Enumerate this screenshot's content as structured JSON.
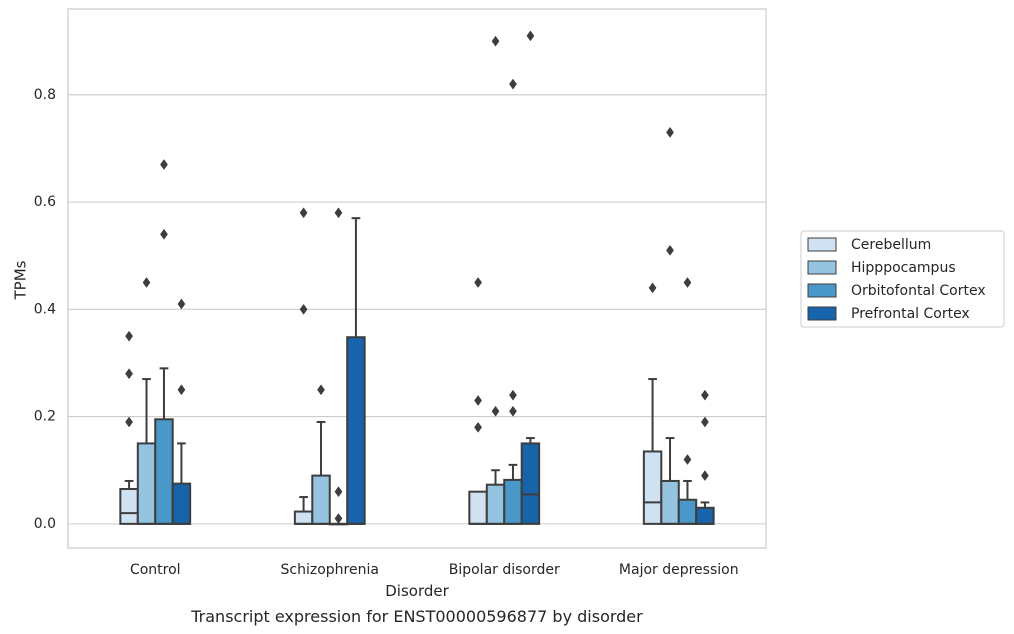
{
  "chart_data": {
    "type": "box",
    "xlabel": "Disorder",
    "ylabel": "TPMs",
    "caption": "Transcript expression for ENST00000596877 by disorder",
    "ylim": [
      -0.045,
      0.96
    ],
    "yticks": [
      0.0,
      0.2,
      0.4,
      0.6,
      0.8
    ],
    "ytick_labels": [
      "0.0",
      "0.2",
      "0.4",
      "0.6",
      "0.8"
    ],
    "grid": "horizontal",
    "legend_position": "right",
    "categories": [
      "Control",
      "Schizophrenia",
      "Bipolar disorder",
      "Major depression"
    ],
    "series": [
      {
        "name": "Cerebellum",
        "color": "#d0e1f2",
        "boxes": [
          {
            "q1": 0.0,
            "median": 0.02,
            "q3": 0.065,
            "whisker_low": 0.0,
            "whisker_high": 0.08,
            "outliers": [
              0.19,
              0.28,
              0.35
            ]
          },
          {
            "q1": 0.0,
            "median": 0.0,
            "q3": 0.023,
            "whisker_low": 0.0,
            "whisker_high": 0.05,
            "outliers": [
              0.4,
              0.58
            ]
          },
          {
            "q1": 0.0,
            "median": 0.0,
            "q3": 0.06,
            "whisker_low": 0.0,
            "whisker_high": 0.06,
            "outliers": [
              0.18,
              0.23,
              0.45
            ]
          },
          {
            "q1": 0.0,
            "median": 0.04,
            "q3": 0.135,
            "whisker_low": 0.0,
            "whisker_high": 0.27,
            "outliers": [
              0.44
            ]
          }
        ]
      },
      {
        "name": "Hipppocampus",
        "color": "#94c4df",
        "boxes": [
          {
            "q1": 0.0,
            "median": 0.0,
            "q3": 0.15,
            "whisker_low": 0.0,
            "whisker_high": 0.27,
            "outliers": [
              0.45
            ]
          },
          {
            "q1": 0.0,
            "median": 0.0,
            "q3": 0.09,
            "whisker_low": 0.0,
            "whisker_high": 0.19,
            "outliers": [
              0.25
            ]
          },
          {
            "q1": 0.0,
            "median": 0.0,
            "q3": 0.073,
            "whisker_low": 0.0,
            "whisker_high": 0.1,
            "outliers": [
              0.21,
              0.9
            ]
          },
          {
            "q1": 0.0,
            "median": 0.0,
            "q3": 0.08,
            "whisker_low": 0.0,
            "whisker_high": 0.16,
            "outliers": [
              0.51,
              0.73
            ]
          }
        ]
      },
      {
        "name": "Orbitofontal Cortex",
        "color": "#4a98c9",
        "boxes": [
          {
            "q1": 0.0,
            "median": 0.0,
            "q3": 0.195,
            "whisker_low": 0.0,
            "whisker_high": 0.29,
            "outliers": [
              0.54,
              0.67
            ]
          },
          {
            "q1": 0.0,
            "median": 0.0,
            "q3": 0.0,
            "whisker_low": 0.0,
            "whisker_high": 0.0,
            "outliers": [
              0.01,
              0.06,
              0.58
            ]
          },
          {
            "q1": 0.0,
            "median": 0.0,
            "q3": 0.082,
            "whisker_low": 0.0,
            "whisker_high": 0.11,
            "outliers": [
              0.21,
              0.24,
              0.82
            ]
          },
          {
            "q1": 0.0,
            "median": 0.0,
            "q3": 0.045,
            "whisker_low": 0.0,
            "whisker_high": 0.08,
            "outliers": [
              0.12,
              0.45
            ]
          }
        ]
      },
      {
        "name": "Prefrontal Cortex",
        "color": "#1764ab",
        "boxes": [
          {
            "q1": 0.0,
            "median": 0.0,
            "q3": 0.075,
            "whisker_low": 0.0,
            "whisker_high": 0.15,
            "outliers": [
              0.25,
              0.41
            ]
          },
          {
            "q1": 0.0,
            "median": 0.0,
            "q3": 0.348,
            "whisker_low": 0.0,
            "whisker_high": 0.57,
            "outliers": []
          },
          {
            "q1": 0.0,
            "median": 0.055,
            "q3": 0.15,
            "whisker_low": 0.0,
            "whisker_high": 0.16,
            "outliers": [
              0.91
            ]
          },
          {
            "q1": 0.0,
            "median": 0.0,
            "q3": 0.03,
            "whisker_low": 0.0,
            "whisker_high": 0.04,
            "outliers": [
              0.09,
              0.19,
              0.24
            ]
          }
        ]
      }
    ]
  }
}
